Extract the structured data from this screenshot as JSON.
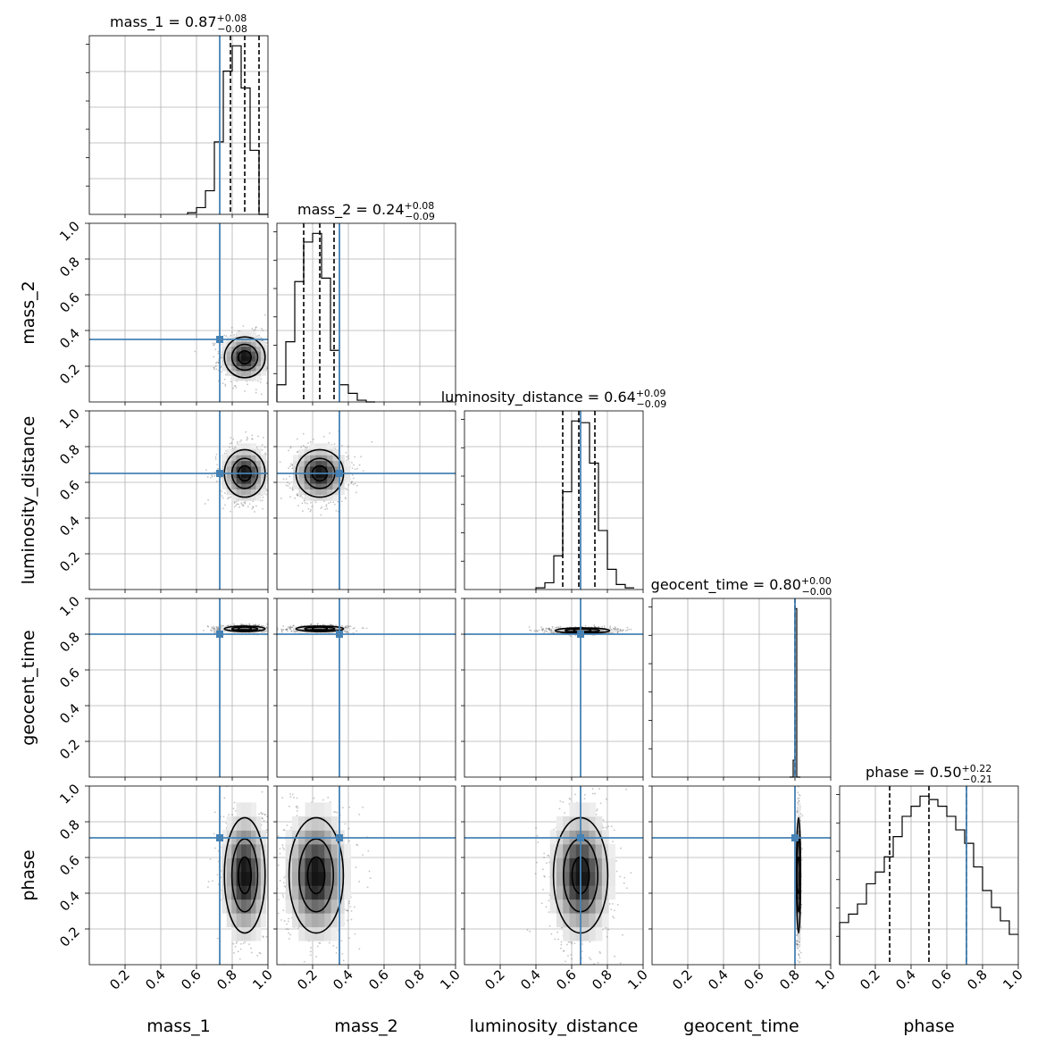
{
  "chart_data": {
    "type": "corner",
    "parameters": [
      "mass_1",
      "mass_2",
      "luminosity_distance",
      "geocent_time",
      "phase"
    ],
    "axis_range": [
      0,
      1
    ],
    "tick_labels": [
      "0.2",
      "0.4",
      "0.6",
      "0.8",
      "1.0"
    ],
    "grid": true,
    "truth_color": "#4682b4",
    "truths": [
      0.73,
      0.35,
      0.65,
      0.8,
      0.71
    ],
    "titles": [
      {
        "param": "mass_1",
        "label": "mass_1 = 0.87",
        "median": 0.87,
        "plus": "+0.08",
        "minus": "−0.08",
        "q_low": 0.79,
        "q_high": 0.95
      },
      {
        "param": "mass_2",
        "label": "mass_2 = 0.24",
        "median": 0.24,
        "plus": "+0.08",
        "minus": "−0.09",
        "q_low": 0.15,
        "q_high": 0.32
      },
      {
        "param": "luminosity_distance",
        "label": "luminosity_distance = 0.64",
        "median": 0.64,
        "plus": "+0.09",
        "minus": "−0.09",
        "q_low": 0.55,
        "q_high": 0.73
      },
      {
        "param": "geocent_time",
        "label": "geocent_time = 0.80",
        "median": 0.8,
        "plus": "+0.00",
        "minus": "−0.00",
        "q_low": 0.8,
        "q_high": 0.8
      },
      {
        "param": "phase",
        "label": "phase = 0.50",
        "median": 0.5,
        "plus": "+0.22",
        "minus": "−0.21",
        "q_low": 0.28,
        "q_high": 0.71
      }
    ],
    "histograms": [
      {
        "param": "mass_1",
        "bin_edges": [
          0.55,
          0.6,
          0.65,
          0.7,
          0.75,
          0.8,
          0.85,
          0.9,
          0.95,
          1.0
        ],
        "counts": [
          0.01,
          0.04,
          0.14,
          0.43,
          0.85,
          1.0,
          0.75,
          0.38,
          0.0
        ]
      },
      {
        "param": "mass_2",
        "bin_edges": [
          0.0,
          0.05,
          0.1,
          0.15,
          0.2,
          0.25,
          0.3,
          0.35,
          0.4,
          0.45,
          0.5,
          0.55
        ],
        "counts": [
          0.1,
          0.35,
          0.7,
          0.93,
          0.98,
          0.72,
          0.3,
          0.1,
          0.05,
          0.01,
          0.0
        ]
      },
      {
        "param": "luminosity_distance",
        "bin_edges": [
          0.4,
          0.45,
          0.5,
          0.55,
          0.6,
          0.65,
          0.7,
          0.75,
          0.8,
          0.85,
          0.9,
          0.95
        ],
        "counts": [
          0.01,
          0.04,
          0.2,
          0.58,
          1.0,
          0.99,
          0.75,
          0.35,
          0.12,
          0.03,
          0.01
        ]
      },
      {
        "param": "geocent_time",
        "bin_edges": [
          0.77,
          0.78,
          0.79,
          0.8,
          0.81,
          0.82,
          0.83
        ],
        "counts": [
          0.0,
          0.0,
          0.1,
          1.0,
          0.0,
          0.0
        ]
      },
      {
        "param": "phase",
        "bin_edges": [
          0.0,
          0.05,
          0.1,
          0.15,
          0.2,
          0.25,
          0.3,
          0.35,
          0.4,
          0.45,
          0.5,
          0.55,
          0.6,
          0.65,
          0.7,
          0.75,
          0.8,
          0.85,
          0.9,
          0.95,
          1.0
        ],
        "counts": [
          0.25,
          0.3,
          0.36,
          0.48,
          0.55,
          0.64,
          0.76,
          0.88,
          0.94,
          1.0,
          0.98,
          0.94,
          0.88,
          0.8,
          0.72,
          0.58,
          0.44,
          0.34,
          0.26,
          0.18
        ]
      }
    ],
    "scatter_tick_labels": {
      "y_params": [
        "mass_2",
        "luminosity_distance",
        "geocent_time",
        "phase"
      ],
      "x_params": [
        "mass_1",
        "mass_2",
        "luminosity_distance",
        "geocent_time",
        "phase"
      ]
    },
    "posteriors_2d": [
      {
        "x": "mass_1",
        "y": "mass_2",
        "mean_x": 0.87,
        "mean_y": 0.25,
        "sd_x": 0.06,
        "sd_y": 0.06
      },
      {
        "x": "mass_1",
        "y": "luminosity_distance",
        "mean_x": 0.87,
        "mean_y": 0.65,
        "sd_x": 0.06,
        "sd_y": 0.07
      },
      {
        "x": "mass_2",
        "y": "luminosity_distance",
        "mean_x": 0.24,
        "mean_y": 0.65,
        "sd_x": 0.07,
        "sd_y": 0.07
      },
      {
        "x": "mass_1",
        "y": "geocent_time",
        "mean_x": 0.87,
        "mean_y": 0.83,
        "sd_x": 0.06,
        "sd_y": 0.008
      },
      {
        "x": "mass_2",
        "y": "geocent_time",
        "mean_x": 0.24,
        "mean_y": 0.83,
        "sd_x": 0.07,
        "sd_y": 0.008
      },
      {
        "x": "luminosity_distance",
        "y": "geocent_time",
        "mean_x": 0.66,
        "mean_y": 0.82,
        "sd_x": 0.08,
        "sd_y": 0.008
      },
      {
        "x": "mass_1",
        "y": "phase",
        "mean_x": 0.87,
        "mean_y": 0.5,
        "sd_x": 0.06,
        "sd_y": 0.17
      },
      {
        "x": "mass_2",
        "y": "phase",
        "mean_x": 0.22,
        "mean_y": 0.5,
        "sd_x": 0.08,
        "sd_y": 0.17
      },
      {
        "x": "luminosity_distance",
        "y": "phase",
        "mean_x": 0.65,
        "mean_y": 0.5,
        "sd_x": 0.08,
        "sd_y": 0.17
      },
      {
        "x": "geocent_time",
        "y": "phase",
        "mean_x": 0.82,
        "mean_y": 0.5,
        "sd_x": 0.006,
        "sd_y": 0.17
      }
    ]
  }
}
